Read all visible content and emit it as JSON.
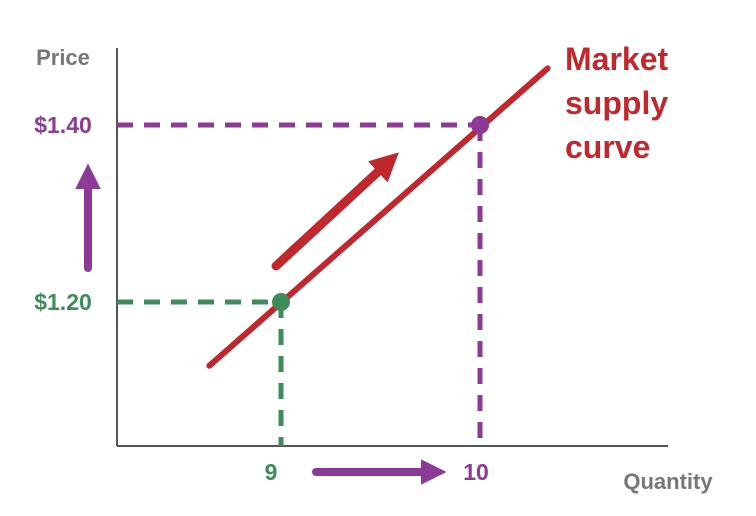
{
  "chart_data": {
    "type": "line",
    "title": "",
    "xlabel": "Quantity",
    "ylabel": "Price",
    "series": [
      {
        "name": "Market supply curve",
        "label_lines": [
          "Market",
          "supply",
          "curve"
        ],
        "color": "#c0282d",
        "points": [
          {
            "x": 9,
            "y": 1.2,
            "x_label": "9",
            "y_label": "$1.20",
            "color": "#3e8c5a"
          },
          {
            "x": 10,
            "y": 1.4,
            "x_label": "10",
            "y_label": "$1.40",
            "color": "#8c3a96"
          }
        ]
      }
    ],
    "annotations": [
      {
        "type": "arrow",
        "direction": "up",
        "along": "price-axis",
        "meaning": "price increase",
        "color": "#8c3a96"
      },
      {
        "type": "arrow",
        "direction": "right",
        "along": "quantity-axis",
        "meaning": "quantity increase",
        "color": "#8c3a96"
      },
      {
        "type": "arrow",
        "direction": "up-right",
        "along": "supply-curve",
        "meaning": "movement along supply curve",
        "color": "#c0282d"
      }
    ],
    "colors": {
      "axis": "#555555",
      "axis_title": "#777777"
    },
    "grid": false
  }
}
